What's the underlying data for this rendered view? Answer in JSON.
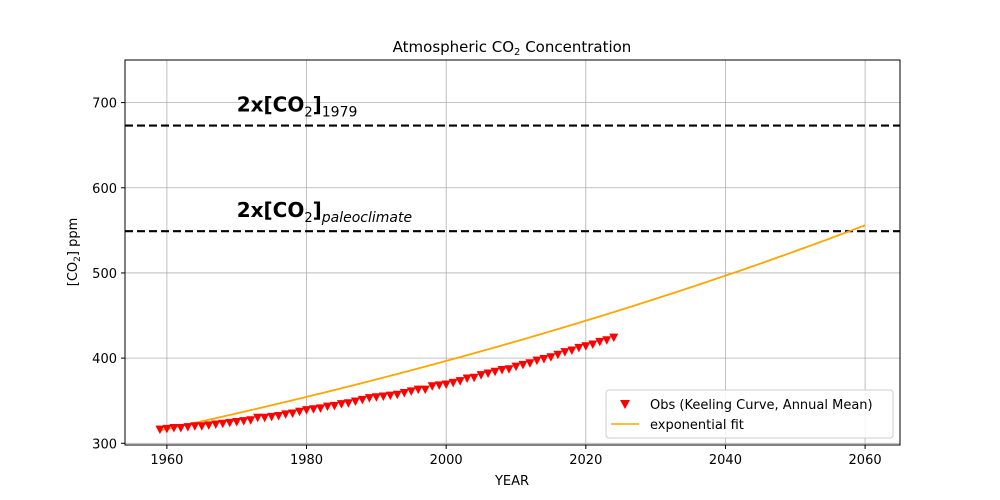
{
  "chart_data": {
    "type": "scatter",
    "title": {
      "pre": "Atmospheric CO",
      "sub": "2",
      "post": " Concentration"
    },
    "xlabel": "YEAR",
    "ylabel": {
      "pre": "[CO",
      "sub": "2",
      "post": "] ppm"
    },
    "xlim": [
      1954,
      2065
    ],
    "ylim": [
      298,
      750
    ],
    "xticks": [
      1960,
      1980,
      2000,
      2020,
      2040,
      2060
    ],
    "yticks": [
      300,
      400,
      500,
      600,
      700
    ],
    "grid": true,
    "legend_position": "lower-right",
    "colors": {
      "obs": "#ff0000",
      "fit": "#ffa500",
      "hline": "#000000"
    },
    "series": [
      {
        "name": "Obs (Keeling Curve, Annual Mean)",
        "kind": "scatter",
        "marker": "triangle-down",
        "x": [
          1959,
          1960,
          1961,
          1962,
          1963,
          1964,
          1965,
          1966,
          1967,
          1968,
          1969,
          1970,
          1971,
          1972,
          1973,
          1974,
          1975,
          1976,
          1977,
          1978,
          1979,
          1980,
          1981,
          1982,
          1983,
          1984,
          1985,
          1986,
          1987,
          1988,
          1989,
          1990,
          1991,
          1992,
          1993,
          1994,
          1995,
          1996,
          1997,
          1998,
          1999,
          2000,
          2001,
          2002,
          2003,
          2004,
          2005,
          2006,
          2007,
          2008,
          2009,
          2010,
          2011,
          2012,
          2013,
          2014,
          2015,
          2016,
          2017,
          2018,
          2019,
          2020,
          2021,
          2022,
          2023,
          2024
        ],
        "y": [
          316,
          317,
          318,
          318,
          319,
          320,
          320,
          321,
          322,
          323,
          324,
          325,
          326,
          327,
          330,
          330,
          331,
          332,
          334,
          335,
          337,
          339,
          340,
          341,
          343,
          344,
          346,
          347,
          349,
          351,
          353,
          354,
          355,
          356,
          357,
          359,
          361,
          363,
          363,
          367,
          368,
          369,
          371,
          373,
          376,
          377,
          380,
          382,
          384,
          386,
          387,
          390,
          392,
          394,
          397,
          399,
          401,
          404,
          407,
          409,
          412,
          414,
          416,
          419,
          421,
          424
        ]
      },
      {
        "name": "exponential fit",
        "kind": "line",
        "curve": {
          "x0": 1959,
          "y0": 315,
          "x1": 2060,
          "y1": 556
        }
      }
    ],
    "hlines": [
      {
        "y": 673,
        "label_main": "2x[CO",
        "label_sub": "2",
        "label_close": "]",
        "label_subscript": "1979",
        "label_subscript_italic": false
      },
      {
        "y": 549,
        "label_main": "2x[CO",
        "label_sub": "2",
        "label_close": "]",
        "label_subscript": "paleoclimate",
        "label_subscript_italic": true
      }
    ]
  }
}
